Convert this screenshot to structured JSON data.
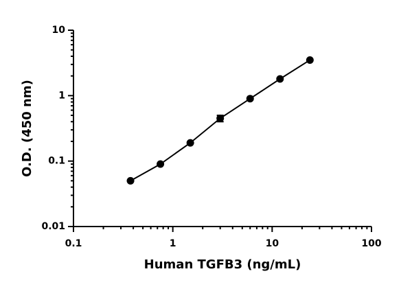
{
  "chart_data": {
    "type": "scatter",
    "x_label": "Human TGFB3 (ng/mL)",
    "y_label": "O.D. (450 nm)",
    "x_scale": "log",
    "y_scale": "log",
    "xlim": [
      0.1,
      100
    ],
    "xticks": [
      0.1,
      1,
      10,
      100
    ],
    "ylim": [
      0.01,
      10
    ],
    "yticks": [
      0.01,
      0.1,
      1,
      10
    ],
    "series": [
      {
        "color": "#000000",
        "x": [
          0.375,
          0.75,
          1.5,
          3,
          6,
          12,
          24
        ],
        "values": [
          0.05,
          0.09,
          0.19,
          0.45,
          0.9,
          1.8,
          3.5
        ],
        "errors": [
          null,
          null,
          null,
          0.05,
          null,
          null,
          null
        ]
      }
    ]
  }
}
